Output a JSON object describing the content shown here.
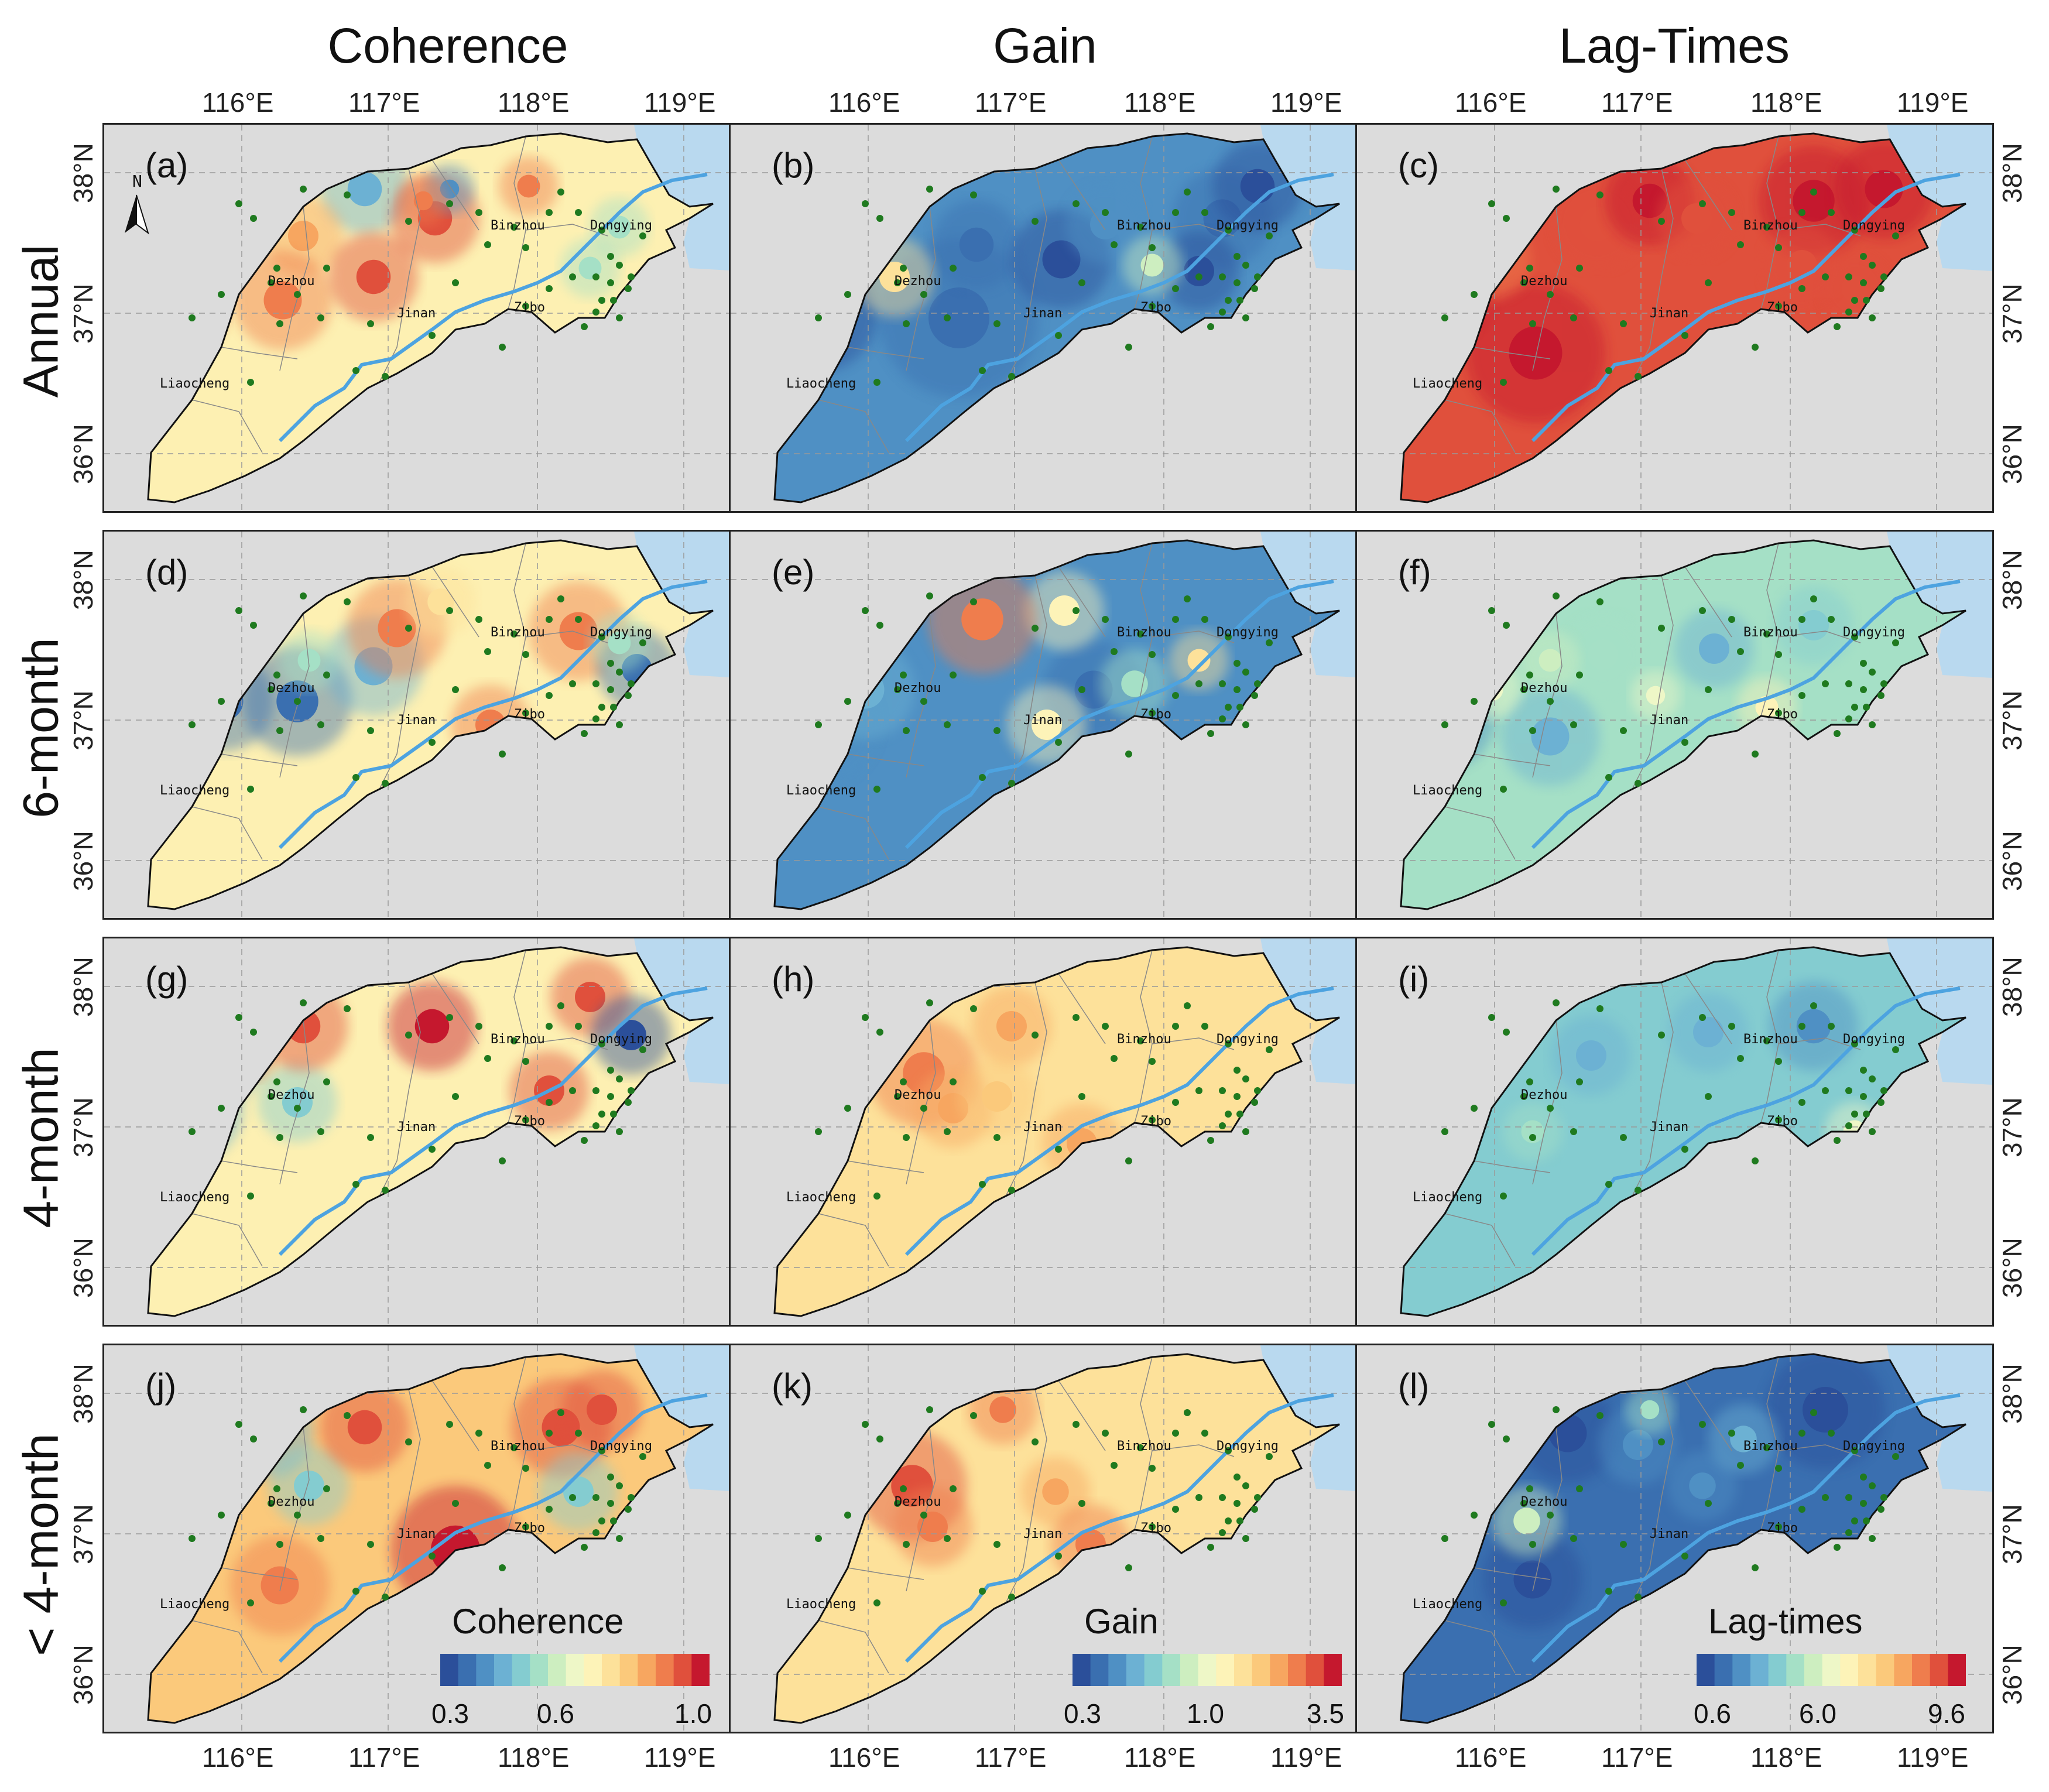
{
  "columns": [
    "Coherence",
    "Gain",
    "Lag-Times"
  ],
  "rows": [
    "Annual",
    "6-month",
    "4-month",
    "< 4-month"
  ],
  "panel_labels": [
    "(a)",
    "(b)",
    "(c)",
    "(d)",
    "(e)",
    "(f)",
    "(g)",
    "(h)",
    "(i)",
    "(j)",
    "(k)",
    "(l)"
  ],
  "lon_ticks": [
    "116°E",
    "117°E",
    "118°E",
    "119°E"
  ],
  "lat_ticks": [
    "38°N",
    "37°N",
    "36°N"
  ],
  "cities": [
    "Binzhou",
    "Dongying",
    "Dezhou",
    "Jinan",
    "Zibo",
    "Liaocheng"
  ],
  "north_arrow": "N",
  "legends": [
    {
      "title": "Coherence",
      "min": "0.3",
      "mid": "0.6",
      "max": "1.0"
    },
    {
      "title": "Gain",
      "min": "0.3",
      "mid": "1.0",
      "max": "3.5"
    },
    {
      "title": "Lag-times",
      "min": "0.6",
      "mid": "6.0",
      "max": "9.6"
    }
  ],
  "colors": {
    "sea": "#b9d9ef",
    "background": "#dcdcdc",
    "river": "#4da3e0",
    "station": "#1f7a1f",
    "ramp": [
      "#2b4f9a",
      "#3a6fb0",
      "#4f90c4",
      "#6cb1d3",
      "#84ccd0",
      "#a5e0c6",
      "#cdeec0",
      "#eef7c7",
      "#fdf3b8",
      "#fde19a",
      "#fbc97b",
      "#f7a660",
      "#ef7d4d",
      "#e0503c",
      "#c5182e"
    ]
  },
  "panel_styles": [
    {
      "base": "#fdf0b2"
    },
    {
      "base": "#4f90c4"
    },
    {
      "base": "#e0503c"
    },
    {
      "base": "#fdf0b2"
    },
    {
      "base": "#4f90c4"
    },
    {
      "base": "#a5e0c6"
    },
    {
      "base": "#fdf0b2"
    },
    {
      "base": "#fde19a"
    },
    {
      "base": "#84ccd0"
    },
    {
      "base": "#fbc97b"
    },
    {
      "base": "#fde19a"
    },
    {
      "base": "#3a6fb0"
    }
  ]
}
